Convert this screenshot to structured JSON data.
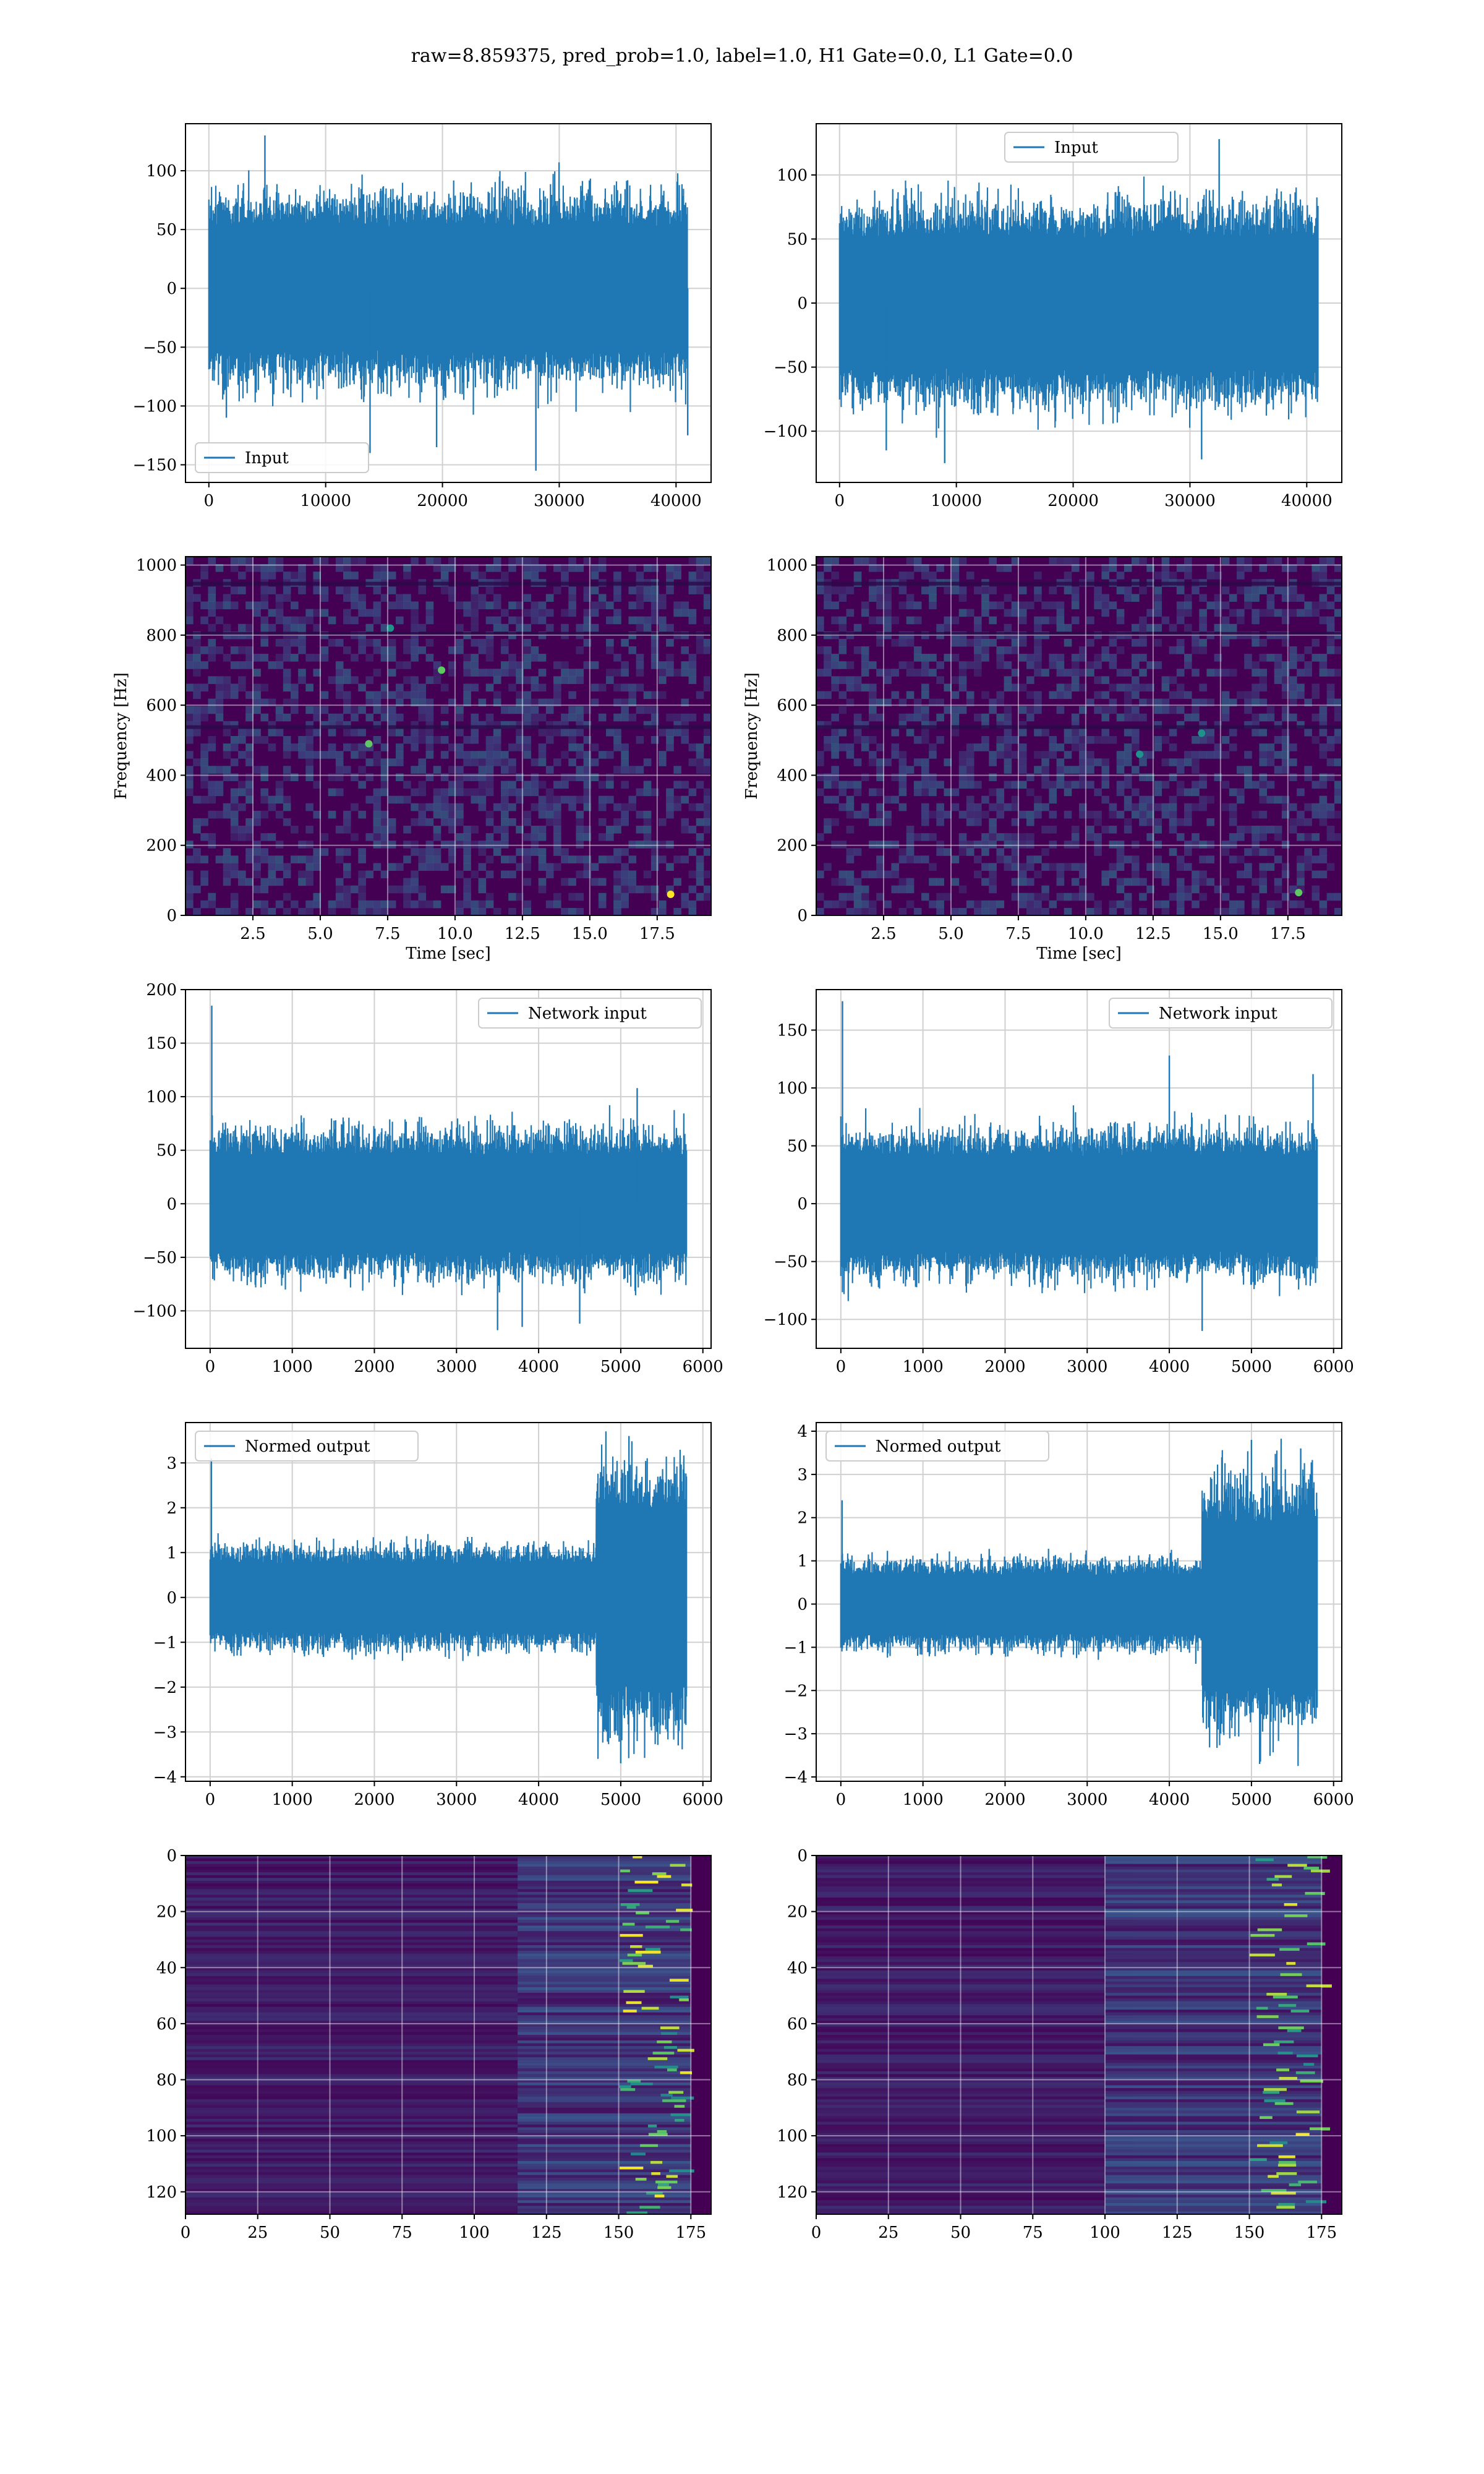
{
  "figure": {
    "suptitle": "raw=8.859375, pred_prob=1.0, label=1.0, H1 Gate=0.0, L1 Gate=0.0"
  },
  "colors": {
    "line": "#1f77b4",
    "grid": "#d0d0d0",
    "viridis_dark": "#440154",
    "viridis_teal": "#21918c",
    "viridis_green": "#5ec962",
    "viridis_yellow": "#fde725"
  },
  "chart_data": [
    {
      "type": "line",
      "row": 0,
      "col": 0,
      "series": [
        {
          "name": "Input",
          "n_points": 40960,
          "amplitude_typical": 70,
          "spikes": [
            [
              1500,
              -110
            ],
            [
              4800,
              130
            ],
            [
              13800,
              -140
            ],
            [
              19500,
              -135
            ],
            [
              28000,
              -155
            ],
            [
              41000,
              -125
            ]
          ]
        }
      ],
      "xlim": [
        -2000,
        43000
      ],
      "ylim": [
        -165,
        140
      ],
      "xticks": [
        0,
        10000,
        20000,
        30000,
        40000
      ],
      "xtick_labels": [
        "0",
        "10000",
        "20000",
        "30000",
        "40000"
      ],
      "yticks": [
        -150,
        -100,
        -50,
        0,
        50,
        100
      ],
      "ytick_labels": [
        "−150",
        "−100",
        "−50",
        "0",
        "50",
        "100"
      ],
      "legend": "lower-left",
      "grid": true
    },
    {
      "type": "line",
      "row": 0,
      "col": 1,
      "series": [
        {
          "name": "Input",
          "n_points": 40960,
          "amplitude_typical": 68,
          "spikes": [
            [
              4000,
              -115
            ],
            [
              9000,
              -125
            ],
            [
              31000,
              -122
            ],
            [
              32500,
              128
            ]
          ]
        }
      ],
      "xlim": [
        -2000,
        43000
      ],
      "ylim": [
        -140,
        140
      ],
      "xticks": [
        0,
        10000,
        20000,
        30000,
        40000
      ],
      "xtick_labels": [
        "0",
        "10000",
        "20000",
        "30000",
        "40000"
      ],
      "yticks": [
        -100,
        -50,
        0,
        50,
        100
      ],
      "ytick_labels": [
        "−100",
        "−50",
        "0",
        "50",
        "100"
      ],
      "legend": "upper-center",
      "grid": true
    },
    {
      "type": "heatmap",
      "row": 1,
      "col": 0,
      "xlabel": "Time [sec]",
      "ylabel": "Frequency [Hz]",
      "xlim": [
        0,
        19.5
      ],
      "ylim": [
        0,
        1024
      ],
      "xticks": [
        2.5,
        5.0,
        7.5,
        10.0,
        12.5,
        15.0,
        17.5
      ],
      "xtick_labels": [
        "2.5",
        "5.0",
        "7.5",
        "10.0",
        "12.5",
        "15.0",
        "17.5"
      ],
      "yticks": [
        0,
        200,
        400,
        600,
        800,
        1000
      ],
      "ytick_labels": [
        "0",
        "200",
        "400",
        "600",
        "800",
        "1000"
      ],
      "hotspots": [
        [
          18.0,
          60,
          "#fde725"
        ],
        [
          6.8,
          490,
          "#5ec962"
        ],
        [
          9.5,
          700,
          "#5ec962"
        ],
        [
          7.6,
          820,
          "#21918c"
        ]
      ],
      "grid": true
    },
    {
      "type": "heatmap",
      "row": 1,
      "col": 1,
      "xlabel": "Time [sec]",
      "ylabel": "Frequency [Hz]",
      "xlim": [
        0,
        19.5
      ],
      "ylim": [
        0,
        1024
      ],
      "xticks": [
        2.5,
        5.0,
        7.5,
        10.0,
        12.5,
        15.0,
        17.5
      ],
      "xtick_labels": [
        "2.5",
        "5.0",
        "7.5",
        "10.0",
        "12.5",
        "15.0",
        "17.5"
      ],
      "yticks": [
        0,
        200,
        400,
        600,
        800,
        1000
      ],
      "ytick_labels": [
        "0",
        "200",
        "400",
        "600",
        "800",
        "1000"
      ],
      "hotspots": [
        [
          17.9,
          65,
          "#5ec962"
        ],
        [
          14.3,
          520,
          "#21918c"
        ],
        [
          12.0,
          460,
          "#21918c"
        ]
      ],
      "grid": true
    },
    {
      "type": "line",
      "row": 2,
      "col": 0,
      "series": [
        {
          "name": "Network input",
          "n_points": 5800,
          "amplitude_typical": 60,
          "spikes": [
            [
              20,
              185
            ],
            [
              3500,
              -118
            ],
            [
              3800,
              -115
            ],
            [
              5200,
              108
            ],
            [
              4500,
              -112
            ]
          ]
        }
      ],
      "xlim": [
        -300,
        6100
      ],
      "ylim": [
        -135,
        200
      ],
      "xticks": [
        0,
        1000,
        2000,
        3000,
        4000,
        5000,
        6000
      ],
      "xtick_labels": [
        "0",
        "1000",
        "2000",
        "3000",
        "4000",
        "5000",
        "6000"
      ],
      "yticks": [
        -100,
        -50,
        0,
        50,
        100,
        150,
        200
      ],
      "ytick_labels": [
        "−100",
        "−50",
        "0",
        "50",
        "100",
        "150",
        "200"
      ],
      "legend": "upper-right",
      "grid": true
    },
    {
      "type": "line",
      "row": 2,
      "col": 1,
      "series": [
        {
          "name": "Network input",
          "n_points": 5800,
          "amplitude_typical": 55,
          "spikes": [
            [
              20,
              175
            ],
            [
              4000,
              128
            ],
            [
              5750,
              112
            ],
            [
              4400,
              -110
            ]
          ]
        }
      ],
      "xlim": [
        -300,
        6100
      ],
      "ylim": [
        -125,
        185
      ],
      "xticks": [
        0,
        1000,
        2000,
        3000,
        4000,
        5000,
        6000
      ],
      "xtick_labels": [
        "0",
        "1000",
        "2000",
        "3000",
        "4000",
        "5000",
        "6000"
      ],
      "yticks": [
        -100,
        -50,
        0,
        50,
        100,
        150
      ],
      "ytick_labels": [
        "−100",
        "−50",
        "0",
        "50",
        "100",
        "150"
      ],
      "legend": "upper-right",
      "grid": true
    },
    {
      "type": "line",
      "row": 3,
      "col": 0,
      "series": [
        {
          "name": "Normed output",
          "n_points": 5800,
          "amplitude_typical": 1.0,
          "burst": [
            4700,
            5800,
            2.6
          ],
          "spikes": [
            [
              15,
              3.1
            ],
            [
              5100,
              3.6
            ],
            [
              5000,
              -3.7
            ],
            [
              5700,
              -3.3
            ]
          ]
        }
      ],
      "xlim": [
        -300,
        6100
      ],
      "ylim": [
        -4.1,
        3.9
      ],
      "xticks": [
        0,
        1000,
        2000,
        3000,
        4000,
        5000,
        6000
      ],
      "xtick_labels": [
        "0",
        "1000",
        "2000",
        "3000",
        "4000",
        "5000",
        "6000"
      ],
      "yticks": [
        -4,
        -3,
        -2,
        -1,
        0,
        1,
        2,
        3
      ],
      "ytick_labels": [
        "−4",
        "−3",
        "−2",
        "−1",
        "0",
        "1",
        "2",
        "3"
      ],
      "legend": "upper-left",
      "grid": true
    },
    {
      "type": "line",
      "row": 3,
      "col": 1,
      "series": [
        {
          "name": "Normed output",
          "n_points": 5800,
          "amplitude_typical": 0.9,
          "burst": [
            4400,
            5800,
            2.5
          ],
          "spikes": [
            [
              15,
              2.4
            ],
            [
              5000,
              3.8
            ],
            [
              5100,
              -3.7
            ],
            [
              5600,
              3.6
            ]
          ]
        }
      ],
      "xlim": [
        -300,
        6100
      ],
      "ylim": [
        -4.1,
        4.2
      ],
      "xticks": [
        0,
        1000,
        2000,
        3000,
        4000,
        5000,
        6000
      ],
      "xtick_labels": [
        "0",
        "1000",
        "2000",
        "3000",
        "4000",
        "5000",
        "6000"
      ],
      "yticks": [
        -4,
        -3,
        -2,
        -1,
        0,
        1,
        2,
        3,
        4
      ],
      "ytick_labels": [
        "−4",
        "−3",
        "−2",
        "−1",
        "0",
        "1",
        "2",
        "3",
        "4"
      ],
      "legend": "upper-left",
      "grid": true
    },
    {
      "type": "heatmap",
      "row": 4,
      "col": 0,
      "xlim": [
        0,
        182
      ],
      "ylim": [
        128,
        0
      ],
      "xticks": [
        0,
        25,
        50,
        75,
        100,
        125,
        150,
        175
      ],
      "xtick_labels": [
        "0",
        "25",
        "50",
        "75",
        "100",
        "125",
        "150",
        "175"
      ],
      "yticks": [
        0,
        20,
        40,
        60,
        80,
        100,
        120
      ],
      "ytick_labels": [
        "0",
        "20",
        "40",
        "60",
        "80",
        "100",
        "120"
      ],
      "active_from": 125,
      "grid": true
    },
    {
      "type": "heatmap",
      "row": 4,
      "col": 1,
      "xlim": [
        0,
        182
      ],
      "ylim": [
        128,
        0
      ],
      "xticks": [
        0,
        25,
        50,
        75,
        100,
        125,
        150,
        175
      ],
      "xtick_labels": [
        "0",
        "25",
        "50",
        "75",
        "100",
        "125",
        "150",
        "175"
      ],
      "yticks": [
        0,
        20,
        40,
        60,
        80,
        100,
        120
      ],
      "ytick_labels": [
        "0",
        "20",
        "40",
        "60",
        "80",
        "100",
        "120"
      ],
      "active_from": 110,
      "grid": true
    }
  ]
}
